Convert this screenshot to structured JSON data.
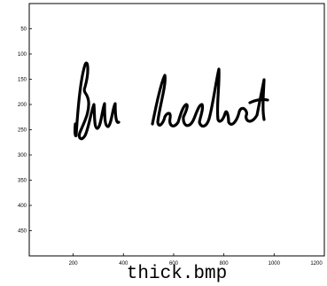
{
  "chart_data": {
    "type": "image",
    "xlabel": "thick.bmp",
    "xlim": [
      25,
      1200
    ],
    "xticks": [
      200,
      400,
      600,
      800,
      1000,
      1200
    ],
    "ylim": [
      0,
      500
    ],
    "yticks": [
      50,
      100,
      150,
      200,
      250,
      300,
      350,
      400,
      450
    ],
    "y_reversed": true
  }
}
